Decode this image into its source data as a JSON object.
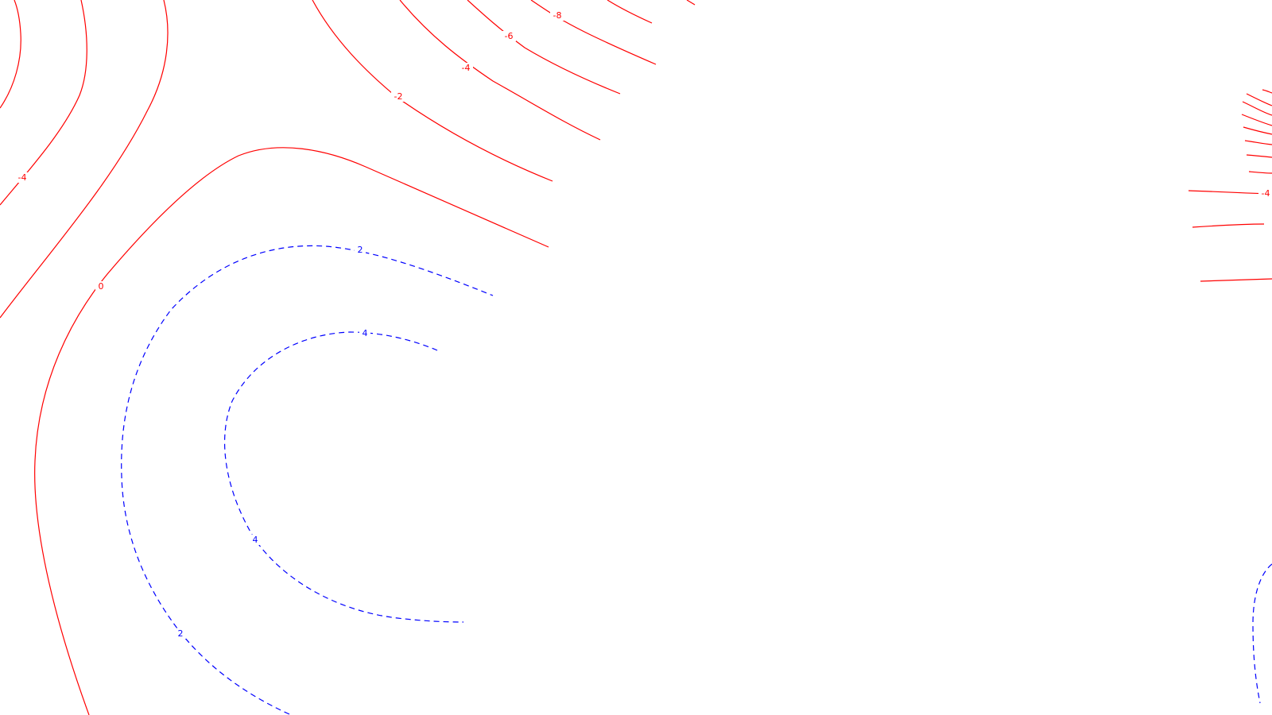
{
  "map": {
    "type": "contour-map",
    "colors": {
      "background": "#ffffff",
      "negative_contour": "#ff0000",
      "positive_contour": "#0000ff"
    },
    "line_styles": {
      "negative": "solid",
      "positive": "dashed"
    },
    "contour_labels": {
      "neg_left_upper": "-4",
      "neg_left_zero": "0",
      "neg_top_m2": "-2",
      "neg_top_m4": "-4",
      "neg_top_m6": "-6",
      "neg_top_m8": "-8",
      "neg_right_m4": "-4",
      "pos_2_top": "2",
      "pos_4_top": "4",
      "pos_4_left": "4",
      "pos_2_bottom": "2"
    }
  }
}
